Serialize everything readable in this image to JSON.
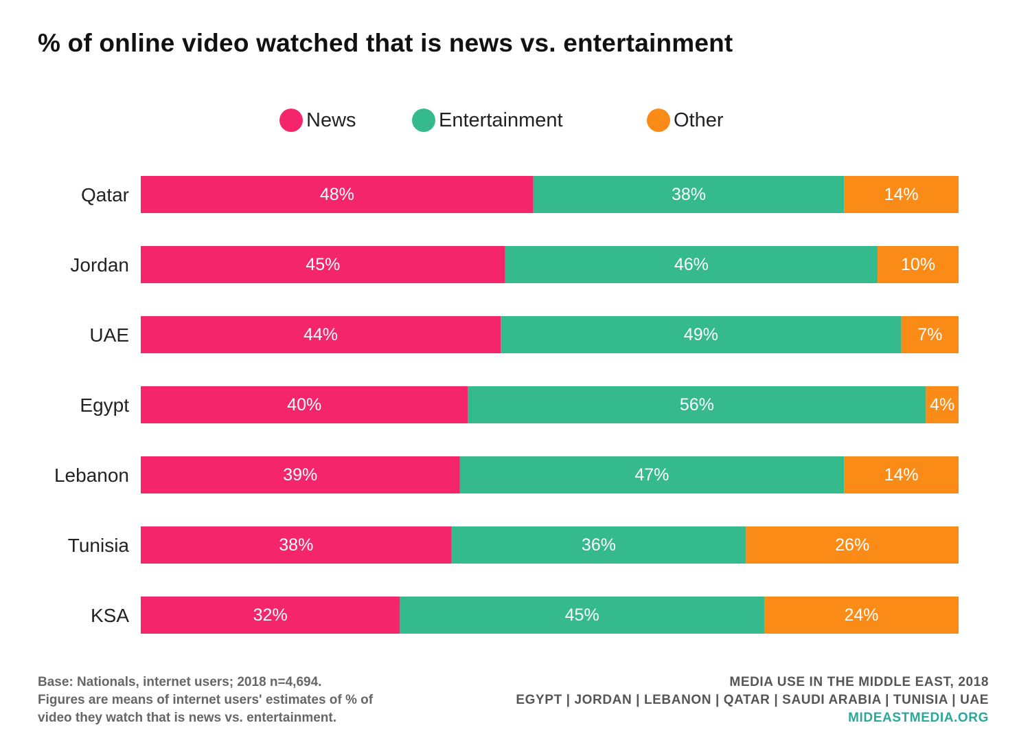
{
  "footer": {
    "base_note": [
      "Base: Nationals, internet users; 2018 n=4,694.",
      "Figures are means of internet users' estimates of % of",
      "video they watch that is news vs. entertainment."
    ],
    "publication": "MEDIA USE IN THE MIDDLE EAST, 2018",
    "countries_line": "EGYPT | JORDAN | LEBANON | QATAR | SAUDI ARABIA | TUNISIA | UAE",
    "website": "MIDEASTMEDIA.ORG"
  },
  "colors": {
    "news": "#f5256b",
    "entertainment": "#34ba8d",
    "other": "#fb8b17",
    "website": "#2aa89a"
  },
  "chart_data": {
    "type": "bar",
    "orientation": "horizontal",
    "stacked": true,
    "title": "% of online video watched that is news vs. entertainment",
    "legend_position": "top-center",
    "grid": false,
    "categories": [
      "Qatar",
      "Jordan",
      "UAE",
      "Egypt",
      "Lebanon",
      "Tunisia",
      "KSA"
    ],
    "series": [
      {
        "name": "News",
        "values": [
          48,
          45,
          44,
          40,
          39,
          38,
          32
        ],
        "labels": [
          "48%",
          "45%",
          "44%",
          "40%",
          "39%",
          "38%",
          "32%"
        ]
      },
      {
        "name": "Entertainment",
        "values": [
          38,
          46,
          49,
          56,
          47,
          36,
          45
        ],
        "labels": [
          "38%",
          "46%",
          "49%",
          "56%",
          "47%",
          "36%",
          "45%"
        ]
      },
      {
        "name": "Other",
        "values": [
          14,
          10,
          7,
          4,
          14,
          26,
          24
        ],
        "labels": [
          "14%",
          "10%",
          "7%",
          "4%",
          "14%",
          "26%",
          "24%"
        ]
      }
    ]
  }
}
